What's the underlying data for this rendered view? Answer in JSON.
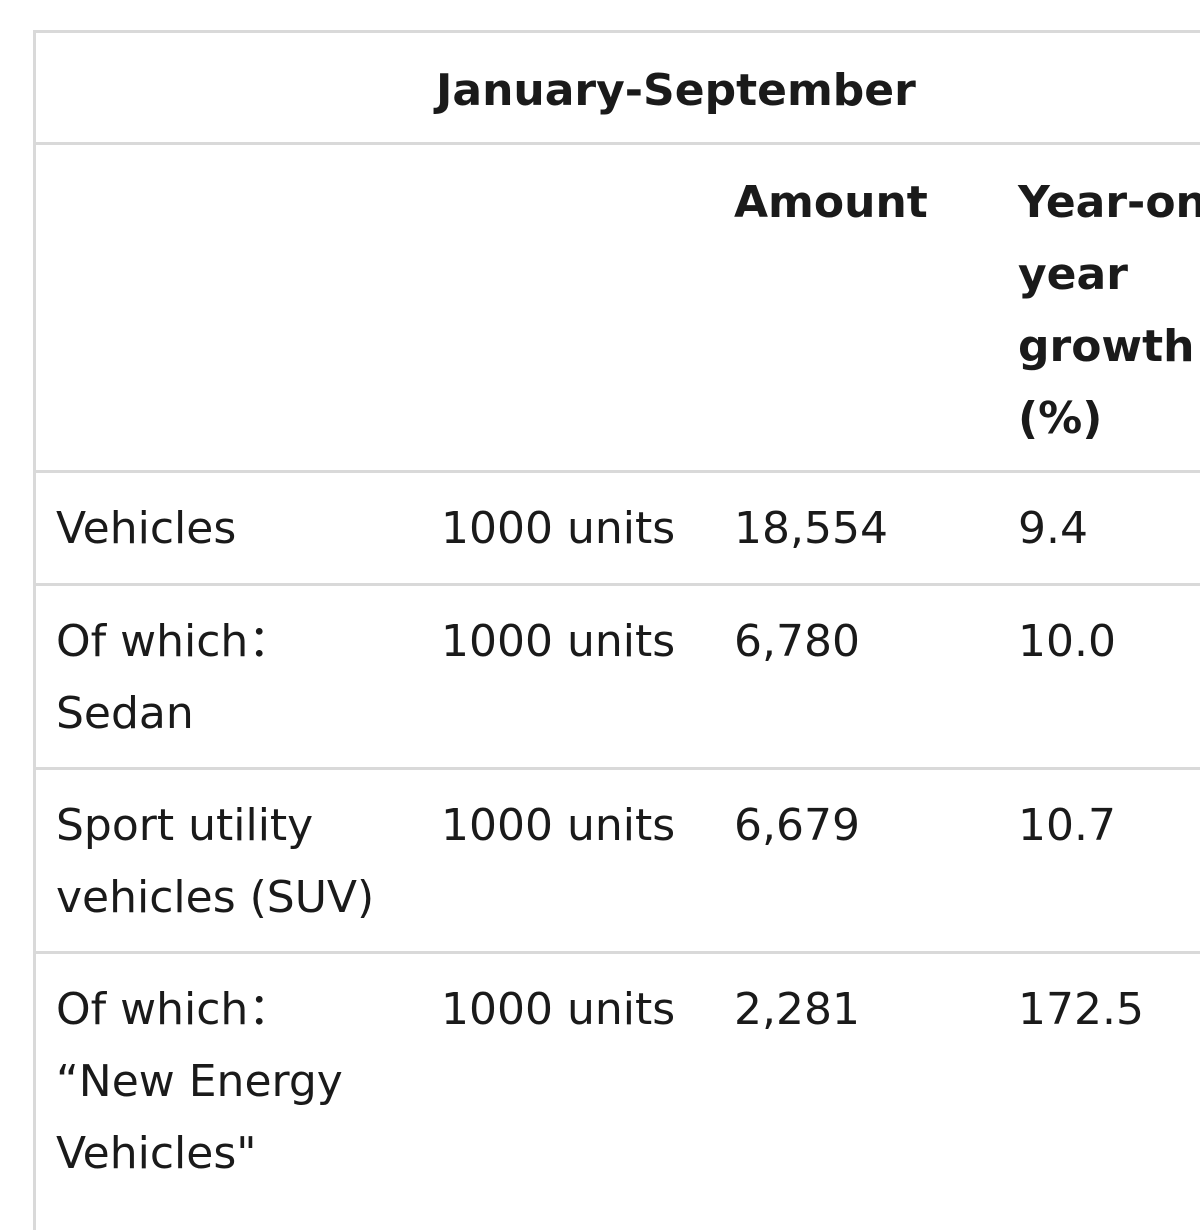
{
  "table": {
    "period_header": "January-September",
    "columns": {
      "amount": "Amount",
      "growth": "Year-on-\nyear\ngrowth\n(%)"
    },
    "rows": [
      {
        "item": "Vehicles",
        "unit": "1000 units",
        "amount": "18,554",
        "growth": "9.4"
      },
      {
        "item": "Of which：\nSedan",
        "unit": "1000 units",
        "amount": "6,780",
        "growth": "10.0"
      },
      {
        "item": "Sport utility\nvehicles (SUV)",
        "unit": "1000 units",
        "amount": "6,679",
        "growth": "10.7"
      },
      {
        "item": "Of which：\n“New Energy\nVehicles\"",
        "unit": "1000 units",
        "amount": "2,281",
        "growth": "172.5"
      }
    ]
  }
}
